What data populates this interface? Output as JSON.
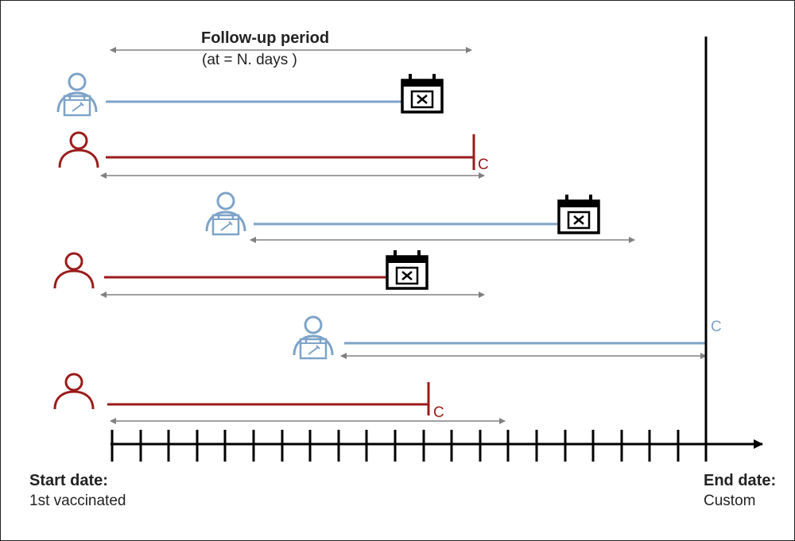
{
  "follow_up": {
    "title": "Follow-up period",
    "subtitle": "(at = N. days )"
  },
  "start_date": {
    "title": "Start date:",
    "subtitle": "1st vaccinated"
  },
  "end_date": {
    "title": "End date:",
    "subtitle": "Custom"
  },
  "censor_label": "C",
  "colors": {
    "vaccinated": "#7ea3c8",
    "unvaccinated": "#9b1b1b",
    "event": "#000000",
    "arrow": "#808080",
    "axis": "#000000"
  },
  "legend_icons": {
    "vaccinated": "person-with-vaccine-certificate-icon",
    "unvaccinated": "person-icon",
    "event": "calendar-cross-icon"
  }
}
